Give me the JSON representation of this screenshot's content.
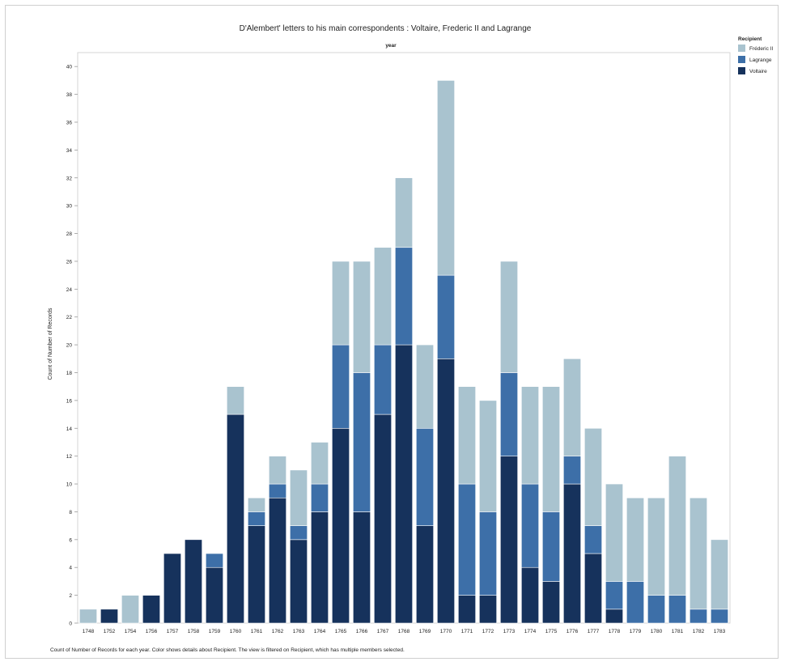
{
  "chart_data": {
    "type": "bar",
    "stacked": true,
    "title": "D'Alembert' letters to his main correspondents : Voltaire, Frederic II and Lagrange",
    "xlabel": "year",
    "ylabel": "Count of Number of Records",
    "caption": "Count of Number of Records for each year.  Color shows details about Recipient. The view is filtered on Recipient, which has multiple members selected.",
    "legend_title": "Recipient",
    "legend_position": "top-right",
    "ylim": [
      0,
      41
    ],
    "yticks": [
      0,
      2,
      4,
      6,
      8,
      10,
      12,
      14,
      16,
      18,
      20,
      22,
      24,
      26,
      28,
      30,
      32,
      34,
      36,
      38,
      40
    ],
    "categories": [
      "1748",
      "1752",
      "1754",
      "1756",
      "1757",
      "1758",
      "1759",
      "1760",
      "1761",
      "1762",
      "1763",
      "1764",
      "1765",
      "1766",
      "1767",
      "1768",
      "1769",
      "1770",
      "1771",
      "1772",
      "1773",
      "1774",
      "1775",
      "1776",
      "1777",
      "1778",
      "1779",
      "1780",
      "1781",
      "1782",
      "1783"
    ],
    "series": [
      {
        "name": "Voltaire",
        "color": "#16325c",
        "values": [
          0,
          1,
          0,
          2,
          5,
          6,
          4,
          15,
          7,
          9,
          6,
          8,
          14,
          8,
          15,
          20,
          7,
          19,
          2,
          2,
          12,
          4,
          3,
          10,
          5,
          1,
          0,
          0,
          0,
          0,
          0
        ]
      },
      {
        "name": "Lagrange",
        "color": "#3d6fa8",
        "values": [
          0,
          0,
          0,
          0,
          0,
          0,
          1,
          0,
          1,
          1,
          1,
          2,
          6,
          10,
          5,
          7,
          7,
          6,
          8,
          6,
          6,
          6,
          5,
          2,
          2,
          2,
          3,
          2,
          2,
          1,
          1
        ]
      },
      {
        "name": "Fréderic II",
        "color": "#a9c3cf",
        "values": [
          1,
          0,
          2,
          0,
          0,
          0,
          0,
          2,
          1,
          2,
          4,
          3,
          6,
          8,
          7,
          5,
          6,
          14,
          7,
          8,
          8,
          7,
          9,
          7,
          7,
          7,
          6,
          7,
          10,
          8,
          5
        ]
      }
    ],
    "legend_order": [
      "Fréderic II",
      "Lagrange",
      "Voltaire"
    ],
    "grid": false
  }
}
